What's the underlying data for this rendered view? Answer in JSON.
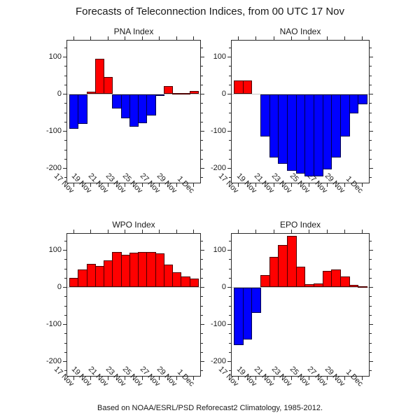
{
  "title": "Forecasts of Teleconnection Indices, from 00 UTC 17 Nov",
  "caption": "Based on NOAA/ESRL/PSD Reforecast2 Climatology, 1985-2012.",
  "colors": {
    "positive": "#ff0000",
    "negative": "#0000ff",
    "zero_line": "#c8c8c8",
    "axis": "#2a2a2a"
  },
  "chart_data": {
    "type": "bar",
    "categories": [
      "17 Nov",
      "18 Nov",
      "19 Nov",
      "20 Nov",
      "21 Nov",
      "22 Nov",
      "23 Nov",
      "24 Nov",
      "25 Nov",
      "26 Nov",
      "27 Nov",
      "28 Nov",
      "29 Nov",
      "30 Nov",
      "1 Dec"
    ],
    "x_tick_labels": [
      "17 Nov",
      "19 Nov",
      "21 Nov",
      "23 Nov",
      "25 Nov",
      "27 Nov",
      "29 Nov",
      "1 Dec"
    ],
    "y_ticks": [
      100,
      0,
      -100,
      -200
    ],
    "y_minor_step": 25,
    "ylim": [
      -240,
      146
    ],
    "grid": false,
    "legend": "none",
    "color_rule": "red for positive values, blue for negative values",
    "panels": [
      {
        "title": "PNA Index",
        "values": [
          -94,
          -80,
          6,
          95,
          47,
          -39,
          -66,
          -88,
          -78,
          -58,
          -4,
          21,
          1,
          3,
          9
        ]
      },
      {
        "title": "NAO Index",
        "values": [
          36,
          36,
          0,
          -114,
          -170,
          -187,
          -206,
          -214,
          -222,
          -222,
          -203,
          -170,
          -115,
          -52,
          -28
        ]
      },
      {
        "title": "WPO Index",
        "values": [
          26,
          48,
          64,
          58,
          72,
          95,
          88,
          93,
          95,
          96,
          92,
          61,
          40,
          30,
          24
        ]
      },
      {
        "title": "EPO Index",
        "values": [
          -155,
          -141,
          -69,
          33,
          83,
          115,
          138,
          55,
          8,
          11,
          45,
          49,
          29,
          6,
          3
        ]
      }
    ]
  }
}
